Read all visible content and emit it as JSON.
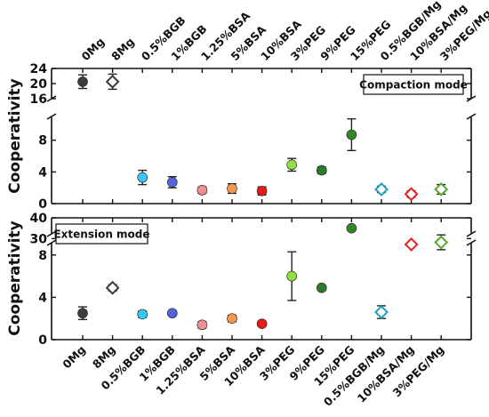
{
  "chart_data": {
    "type": "scatter",
    "categories": [
      "0Mg",
      "8Mg",
      "0.5%BGB",
      "1%BGB",
      "1.25%BSA",
      "5%BSA",
      "10%BSA",
      "3%PEG",
      "9%PEG",
      "15%PEG",
      "0.5%BGB/Mg",
      "10%BSA/Mg",
      "3%PEG/Mg"
    ],
    "colors": [
      "#3d3d3d",
      "#3d3d3d",
      "#38c6f4",
      "#5561e0",
      "#f08f8f",
      "#f39a50",
      "#e11d1d",
      "#8fe040",
      "#2c7a2c",
      "#2f8a20",
      "#1aa0b8",
      "#e51d1d",
      "#56a828"
    ],
    "markers": [
      "circle",
      "diamond-open",
      "circle",
      "circle",
      "circle",
      "circle",
      "circle",
      "circle",
      "circle",
      "circle",
      "diamond-open",
      "diamond-open",
      "diamond-open"
    ],
    "panels": [
      {
        "ylabel": "Cooperativity",
        "mode_label": "Compaction mode",
        "y_ranges": [
          [
            0,
            11
          ],
          [
            16,
            24
          ]
        ],
        "y_ticks": [
          0,
          4,
          8,
          16,
          20,
          24
        ],
        "values": [
          20.5,
          20.5,
          3.3,
          2.7,
          1.7,
          1.9,
          1.6,
          4.9,
          4.2,
          8.7,
          1.8,
          1.2,
          1.8
        ],
        "errors": [
          1.8,
          2.0,
          0.9,
          0.7,
          0.4,
          0.6,
          0.5,
          0.8,
          0.4,
          2.0,
          0.4,
          0.4,
          0.6
        ]
      },
      {
        "ylabel": "Cooperativity",
        "mode_label": "Extension mode",
        "y_ranges": [
          [
            0,
            10
          ],
          [
            28,
            40
          ]
        ],
        "y_ticks": [
          0,
          4,
          8,
          30,
          40
        ],
        "values": [
          2.5,
          4.9,
          2.4,
          2.5,
          1.4,
          2.0,
          1.5,
          6.0,
          4.9,
          35.0,
          2.6,
          9.0,
          9.2
        ],
        "errors": [
          0.6,
          0.3,
          0.3,
          0.2,
          0.3,
          0.3,
          0.2,
          2.3,
          0.1,
          0,
          0.6,
          0,
          0.7
        ]
      }
    ]
  }
}
